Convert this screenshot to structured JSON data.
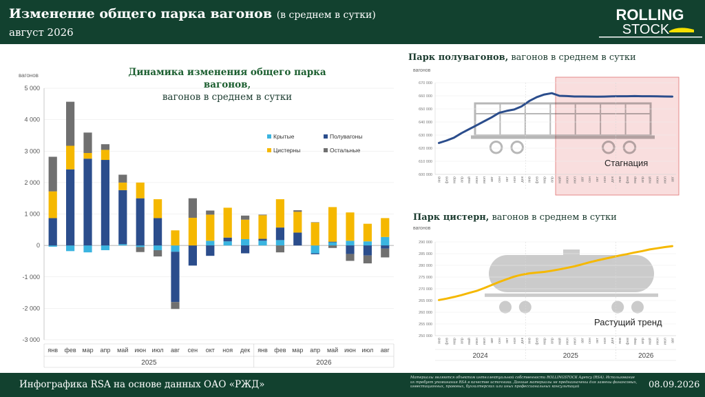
{
  "header": {
    "title": "Изменение общего парка вагонов",
    "title_sub": "(в среднем в сутки)",
    "date_label": "август 2026",
    "logo_line1": "ROLLING",
    "logo_line2": "STOCK"
  },
  "footer": {
    "source": "Инфографика RSA на основе данных ОАО «РЖД»",
    "note": "Материалы являются объектом интеллектуальной собственности ROLLINGSTOCK Agency (RSA). Использование их требует упоминания RSA в качестве источника. Данные материалы не предназначены для замены финансовых, инвестиционных, правовых, бухгалтерских или иных профессиональных консультаций",
    "date": "08.09.2026"
  },
  "colors": {
    "header_bg": "#12412f",
    "covered": "#3ab4e0",
    "gondola": "#2b4d8c",
    "tank": "#f5b800",
    "other": "#707070",
    "stagnation_fill": "#f9dede",
    "stagnation_border": "#e07070"
  },
  "chart_data": [
    {
      "type": "bar",
      "stacked": true,
      "title": "Динамика изменения общего парка вагонов,",
      "title_line2": "вагонов в среднем в сутки",
      "ylabel": "вагонов",
      "ylim": [
        -3000,
        5000
      ],
      "yticks": [
        -3000,
        -2000,
        -1000,
        0,
        1000,
        2000,
        3000,
        4000,
        5000
      ],
      "ytick_labels": [
        "-3 000",
        "-2 000",
        "-1 000",
        "0",
        "1 000",
        "2 000",
        "3 000",
        "4 000",
        "5 000"
      ],
      "categories": [
        "янв",
        "фев",
        "мар",
        "апр",
        "май",
        "июн",
        "июл",
        "авг",
        "сен",
        "окт",
        "ноя",
        "дек",
        "янв",
        "фев",
        "мар",
        "апр",
        "май",
        "июн",
        "июл",
        "авг"
      ],
      "year_groups": [
        {
          "label": "2025",
          "count": 12
        },
        {
          "label": "2026",
          "count": 8
        }
      ],
      "legend_position": "inside-right",
      "series": [
        {
          "name": "Крытые",
          "color": "#3ab4e0",
          "values": [
            -40,
            -180,
            -220,
            -150,
            40,
            -50,
            -150,
            -200,
            0,
            150,
            130,
            200,
            150,
            170,
            0,
            -250,
            100,
            150,
            130,
            270
          ]
        },
        {
          "name": "Полувагоны",
          "color": "#2b4d8c",
          "values": [
            870,
            2420,
            2760,
            2720,
            1720,
            1500,
            870,
            -1600,
            -640,
            -330,
            120,
            -250,
            60,
            400,
            410,
            -30,
            20,
            -270,
            -320,
            -100
          ]
        },
        {
          "name": "Цистерны",
          "color": "#f5b800",
          "values": [
            850,
            750,
            180,
            320,
            240,
            500,
            600,
            480,
            880,
            830,
            950,
            620,
            750,
            900,
            660,
            730,
            1100,
            900,
            560,
            600
          ]
        },
        {
          "name": "Остальные",
          "color": "#707070",
          "values": [
            1100,
            1400,
            650,
            180,
            250,
            -160,
            -200,
            -220,
            620,
            130,
            0,
            130,
            20,
            -220,
            50,
            10,
            -80,
            -220,
            -250,
            -280
          ]
        }
      ]
    },
    {
      "type": "line",
      "title": "Парк полувагонов,",
      "title_rest": "вагонов в среднем в сутки",
      "ylabel": "вагонов",
      "ylim": [
        600000,
        670000
      ],
      "yticks": [
        600000,
        610000,
        620000,
        630000,
        640000,
        650000,
        660000,
        670000
      ],
      "ytick_labels": [
        "600 000",
        "610 000",
        "620 000",
        "630 000",
        "640 000",
        "650 000",
        "660 000",
        "670 000"
      ],
      "x": [
        "янв",
        "фев",
        "мар",
        "апр",
        "май",
        "июн",
        "июл",
        "авг",
        "сен",
        "окт",
        "ноя",
        "дек",
        "янв",
        "фев",
        "мар",
        "апр",
        "май",
        "июн",
        "июл",
        "авг",
        "сен",
        "окт",
        "ноя",
        "дек",
        "янв",
        "фев",
        "мар",
        "апр",
        "май",
        "июн",
        "июл",
        "авг"
      ],
      "year_groups": [
        {
          "label": "2024",
          "count": 12
        },
        {
          "label": "2025",
          "count": 12
        },
        {
          "label": "2026",
          "count": 8
        }
      ],
      "series": [
        {
          "name": "",
          "color": "#2b4d8c",
          "values": [
            624000,
            625800,
            628000,
            631500,
            634500,
            637500,
            640500,
            643500,
            647000,
            648500,
            649500,
            652000,
            656000,
            659000,
            661000,
            662000,
            660000,
            659800,
            659500,
            659500,
            659400,
            659300,
            659400,
            659600,
            659700,
            659700,
            659800,
            659700,
            659700,
            659600,
            659500,
            659400
          ]
        }
      ],
      "highlight": {
        "from_index": 16,
        "to_index": 31,
        "label": "Стагнация"
      }
    },
    {
      "type": "line",
      "title": "Парк цистерн,",
      "title_rest": "вагонов в среднем в сутки",
      "ylabel": "вагонов",
      "ylim": [
        250000,
        290000
      ],
      "yticks": [
        250000,
        255000,
        260000,
        265000,
        270000,
        275000,
        280000,
        285000,
        290000
      ],
      "ytick_labels": [
        "250 000",
        "255 000",
        "260 000",
        "265 000",
        "270 000",
        "275 000",
        "280 000",
        "285 000",
        "290 000"
      ],
      "x": [
        "янв",
        "фев",
        "мар",
        "апр",
        "май",
        "июн",
        "июл",
        "авг",
        "сен",
        "окт",
        "ноя",
        "дек",
        "янв",
        "фев",
        "мар",
        "апр",
        "май",
        "июн",
        "июл",
        "авг",
        "сен",
        "окт",
        "ноя",
        "дек",
        "янв",
        "фев",
        "мар",
        "апр",
        "май",
        "июн",
        "июл",
        "авг"
      ],
      "year_groups": [
        {
          "label": "2024",
          "count": 12
        },
        {
          "label": "2025",
          "count": 12
        },
        {
          "label": "2026",
          "count": 8
        }
      ],
      "series": [
        {
          "name": "",
          "color": "#f5b800",
          "values": [
            265200,
            265800,
            266500,
            267300,
            268200,
            269100,
            270300,
            271600,
            272900,
            274100,
            275200,
            276000,
            276600,
            276900,
            277200,
            277700,
            278300,
            278900,
            279600,
            280400,
            281300,
            282100,
            282800,
            283500,
            284200,
            284800,
            285500,
            286100,
            286800,
            287300,
            287800,
            288200
          ]
        }
      ],
      "annotation": "Растущий тренд"
    }
  ]
}
